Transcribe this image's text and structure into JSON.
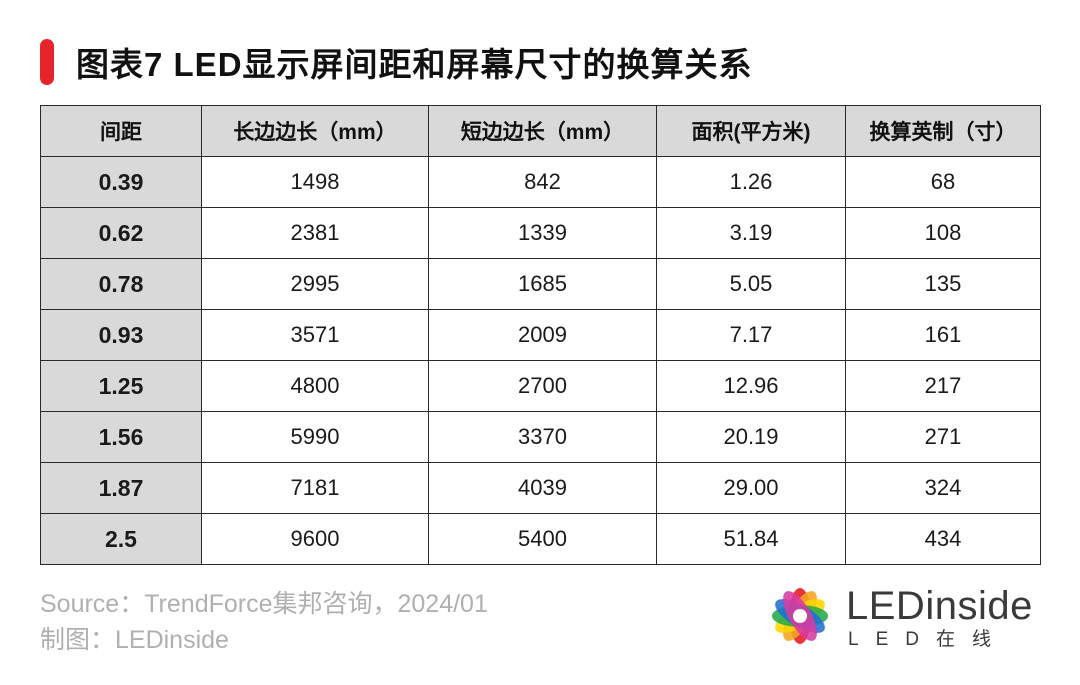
{
  "title": "图表7 LED显示屏间距和屏幕尺寸的换算关系",
  "colors": {
    "accent": "#e8242b",
    "header_bg": "#d9d9d9",
    "source_text": "#b0b0b0"
  },
  "table": {
    "headers": [
      "间距",
      "长边边长（mm）",
      "短边边长（mm）",
      "面积(平方米)",
      "换算英制（寸）"
    ],
    "rows": [
      [
        "0.39",
        "1498",
        "842",
        "1.26",
        "68"
      ],
      [
        "0.62",
        "2381",
        "1339",
        "3.19",
        "108"
      ],
      [
        "0.78",
        "2995",
        "1685",
        "5.05",
        "135"
      ],
      [
        "0.93",
        "3571",
        "2009",
        "7.17",
        "161"
      ],
      [
        "1.25",
        "4800",
        "2700",
        "12.96",
        "217"
      ],
      [
        "1.56",
        "5990",
        "3370",
        "20.19",
        "271"
      ],
      [
        "1.87",
        "7181",
        "4039",
        "29.00",
        "324"
      ],
      [
        "2.5",
        "9600",
        "5400",
        "51.84",
        "434"
      ]
    ]
  },
  "footer": {
    "source": "Source：TrendForce集邦咨询，2024/01",
    "made_by": "制图：LEDinside"
  },
  "logo": {
    "icon": "ledinside-color-flower-logo",
    "wordmark": "LEDinside",
    "subtitle": "LED在线"
  }
}
